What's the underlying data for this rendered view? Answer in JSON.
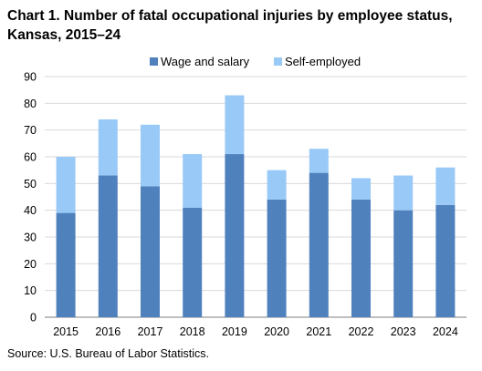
{
  "title": "Chart 1. Number of fatal occupational injuries by employee status, Kansas, 2015–24",
  "source": "Source:  U.S. Bureau  of Labor Statistics.",
  "colors": {
    "wage": "#4f81bd",
    "self": "#99c9f7",
    "grid": "#d9d9d9",
    "axis": "#7f7f7f"
  },
  "chart_data": {
    "type": "bar",
    "stacked": true,
    "categories": [
      "2015",
      "2016",
      "2017",
      "2018",
      "2019",
      "2020",
      "2021",
      "2022",
      "2023",
      "2024"
    ],
    "series": [
      {
        "name": "Wage and salary",
        "values": [
          39,
          53,
          49,
          41,
          61,
          44,
          54,
          44,
          40,
          42
        ]
      },
      {
        "name": "Self-employed",
        "values": [
          21,
          21,
          23,
          20,
          22,
          11,
          9,
          8,
          13,
          14
        ]
      }
    ],
    "ylim": [
      0,
      90
    ],
    "yticks": [
      0,
      10,
      20,
      30,
      40,
      50,
      60,
      70,
      80,
      90
    ],
    "grid": true,
    "legend": "top-center"
  }
}
